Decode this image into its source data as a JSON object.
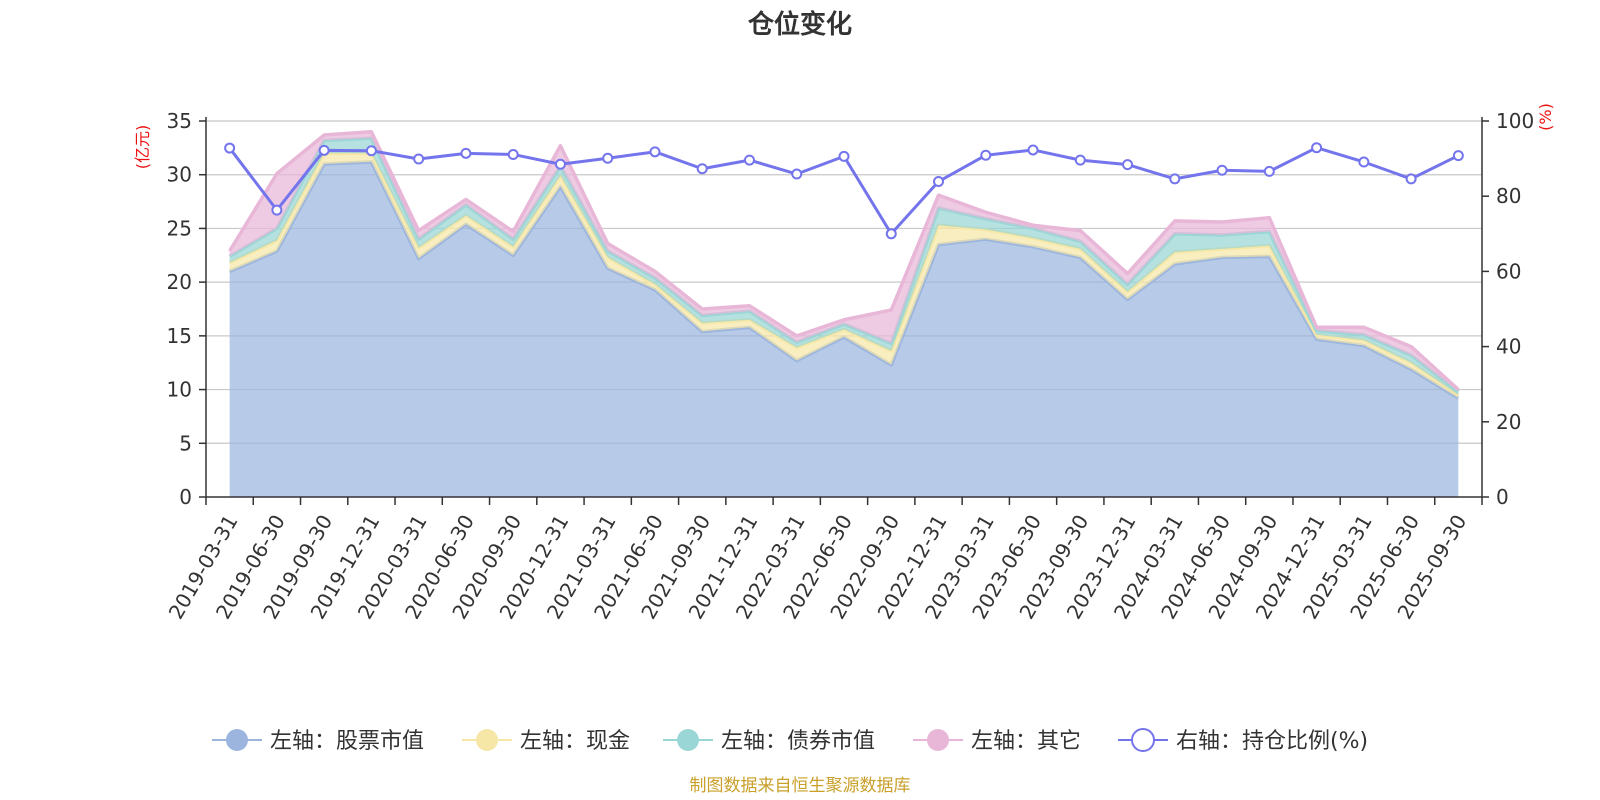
{
  "chart_data": {
    "type": "area",
    "title": "仓位变化",
    "source": "制图数据来自恒生聚源数据库",
    "left_axis": {
      "unit": "(亿元)",
      "min": 0,
      "max": 35,
      "ticks": [
        0,
        5,
        10,
        15,
        20,
        25,
        30,
        35
      ]
    },
    "right_axis": {
      "unit": "(%)",
      "min": 0,
      "max": 100,
      "ticks": [
        0,
        20,
        40,
        60,
        80,
        100
      ]
    },
    "categories": [
      "2019-03-31",
      "2019-06-30",
      "2019-09-30",
      "2019-12-31",
      "2020-03-31",
      "2020-06-30",
      "2020-09-30",
      "2020-12-31",
      "2021-03-31",
      "2021-06-30",
      "2021-09-30",
      "2021-12-31",
      "2022-03-31",
      "2022-06-30",
      "2022-09-30",
      "2022-12-31",
      "2023-03-31",
      "2023-06-30",
      "2023-09-30",
      "2023-12-31",
      "2024-03-31",
      "2024-06-30",
      "2024-09-30",
      "2024-12-31",
      "2025-03-31",
      "2025-06-30",
      "2025-09-30"
    ],
    "stacked_series": [
      {
        "name": "左轴：股票市值",
        "color": "#9bb5de",
        "values": [
          21.0,
          22.9,
          31.0,
          31.2,
          22.2,
          25.4,
          22.5,
          28.9,
          21.3,
          19.3,
          15.4,
          15.8,
          12.7,
          14.9,
          12.3,
          23.5,
          24.0,
          23.3,
          22.3,
          18.4,
          21.7,
          22.3,
          22.4,
          14.7,
          14.1,
          11.9,
          9.2
        ]
      },
      {
        "name": "左轴：现金",
        "color": "#f6e7a6",
        "values": [
          0.8,
          1.0,
          1.0,
          0.8,
          1.0,
          0.8,
          0.8,
          1.0,
          1.0,
          0.5,
          0.8,
          0.7,
          1.2,
          0.7,
          1.3,
          1.8,
          0.9,
          0.8,
          0.8,
          0.7,
          1.1,
          0.8,
          1.0,
          0.4,
          0.5,
          0.6,
          0.3
        ]
      },
      {
        "name": "左轴：债券市值",
        "color": "#9ad6d6",
        "values": [
          0.6,
          1.1,
          1.2,
          1.4,
          0.8,
          1.0,
          0.7,
          0.9,
          0.6,
          0.6,
          0.7,
          0.8,
          0.5,
          0.5,
          0.7,
          1.6,
          1.0,
          0.9,
          0.7,
          0.7,
          1.7,
          1.3,
          1.3,
          0.4,
          0.5,
          0.7,
          0.3
        ]
      },
      {
        "name": "左轴：其它",
        "color": "#e8b7d8",
        "values": [
          0.5,
          5.1,
          0.5,
          0.6,
          0.8,
          0.5,
          0.7,
          1.9,
          0.7,
          0.6,
          0.6,
          0.5,
          0.6,
          0.4,
          3.1,
          1.2,
          0.6,
          0.3,
          1.0,
          1.0,
          1.2,
          1.2,
          1.3,
          0.3,
          0.7,
          0.8,
          0.2
        ]
      }
    ],
    "line_series": {
      "name": "右轴：持仓比例(%)",
      "axis": "right",
      "color": "#7474ec",
      "values": [
        92.8,
        76.3,
        92.2,
        92.1,
        89.9,
        91.4,
        91.1,
        88.5,
        90.1,
        91.8,
        87.3,
        89.6,
        85.9,
        90.6,
        70.0,
        83.9,
        90.9,
        92.3,
        89.6,
        88.4,
        84.6,
        86.9,
        86.6,
        92.9,
        89.1,
        84.6,
        90.8
      ]
    },
    "legend": [
      {
        "label": "左轴：股票市值",
        "color": "#9bb5de",
        "marker": "filled-circle"
      },
      {
        "label": "左轴：现金",
        "color": "#f6e7a6",
        "marker": "filled-circle"
      },
      {
        "label": "左轴：债券市值",
        "color": "#9ad6d6",
        "marker": "filled-circle"
      },
      {
        "label": "左轴：其它",
        "color": "#e8b7d8",
        "marker": "filled-circle"
      },
      {
        "label": "右轴：持仓比例(%)",
        "color": "#7474ec",
        "marker": "hollow-circle"
      }
    ]
  }
}
